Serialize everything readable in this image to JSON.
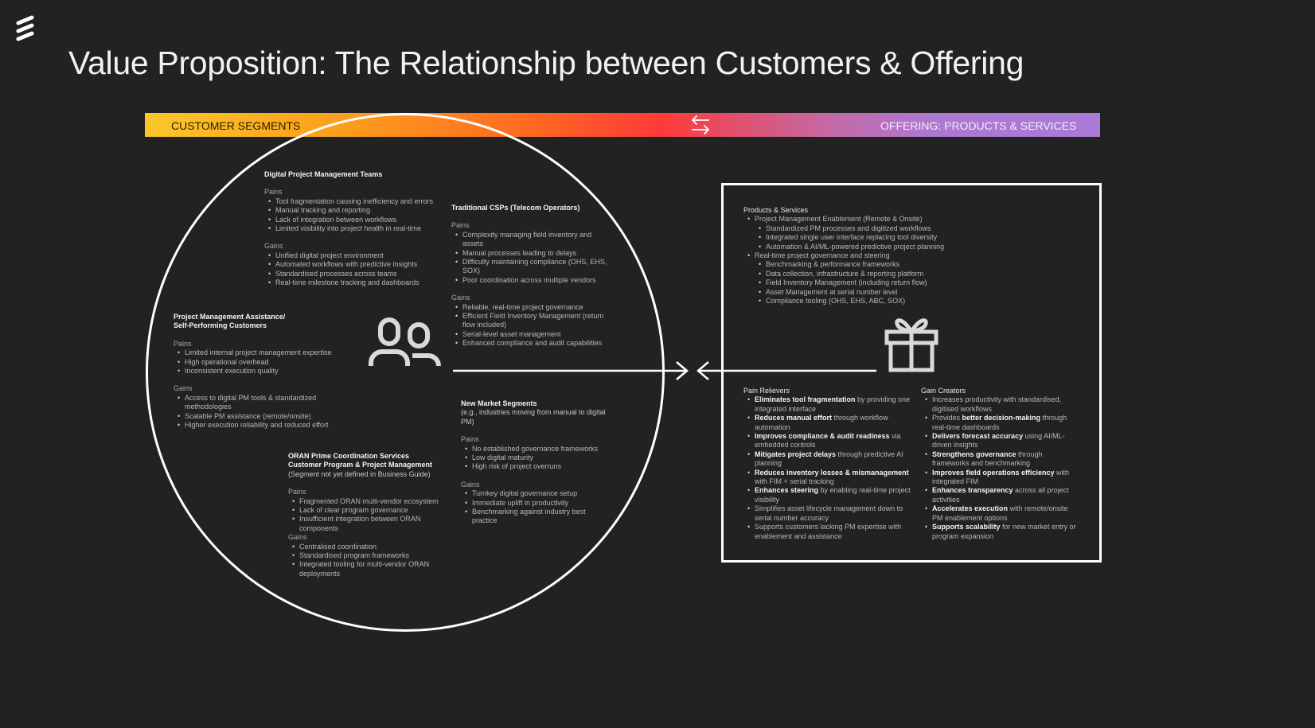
{
  "title": "Value Proposition: The Relationship between Customers & Offering",
  "banner": {
    "left_label": "CUSTOMER SEGMENTS",
    "right_label": "OFFERING: PRODUCTS & SERVICES",
    "icon": "swap-arrows-icon"
  },
  "colors": {
    "background": "#222222",
    "gradient": [
      "#fcc72a",
      "#ff3a38",
      "#a97ad6"
    ],
    "lines": "#ffffff"
  },
  "icons": {
    "logo": "ericsson-logo",
    "customers": "people-icon",
    "offering": "gift-icon"
  },
  "segments": [
    {
      "id": "dpm",
      "title": [
        "Digital Project Management Teams"
      ],
      "sections": [
        {
          "label": "Pains",
          "items": [
            "Tool fragmentation causing inefficiency and errors",
            "Manual tracking and reporting",
            "Lack of integration between workflows",
            "Limited visibility into project health in real-time"
          ]
        },
        {
          "label": "Gains",
          "items": [
            "Unified digital project environment",
            "Automated workflows with predictive insights",
            "Standardised processes across teams",
            "Real-time milestone tracking and dashboards"
          ]
        }
      ]
    },
    {
      "id": "csp",
      "title": [
        "Traditional CSPs (Telecom Operators)"
      ],
      "sections": [
        {
          "label": "Pains",
          "items": [
            "Complexity managing field inventory and assets",
            "Manual processes leading to delays",
            "Difficulty maintaining compliance (OHS, EHS, SOX)",
            "Poor coordination across multiple vendors"
          ]
        },
        {
          "label": "Gains",
          "items": [
            "Reliable, real-time project governance",
            "Efficient Field Inventory Management (return flow included)",
            "Serial-level asset management",
            "Enhanced compliance and audit capabilities"
          ]
        }
      ]
    },
    {
      "id": "pma",
      "title": [
        "Project Management Assistance/",
        "Self-Performing Customers"
      ],
      "sections": [
        {
          "label": "Pains",
          "items": [
            "Limited internal project management expertise",
            "High operational overhead",
            "Inconsistent execution quality"
          ]
        },
        {
          "label": "Gains",
          "items": [
            "Access to digital PM tools & standardized methodologies",
            "Scalable PM assistance (remote/onsite)",
            "Higher execution reliability and reduced effort"
          ]
        }
      ]
    },
    {
      "id": "nms",
      "title": [
        "New Market Segments"
      ],
      "subtitle": "(e.g., industries moving from manual to digital PM)",
      "sections": [
        {
          "label": "Pains",
          "items": [
            "No established governance frameworks",
            "Low digital maturity",
            "High risk of project overruns"
          ]
        },
        {
          "label": "Gains",
          "items": [
            "Turnkey digital governance setup",
            "Immediate uplift in productivity",
            "Benchmarking against industry best practice"
          ]
        }
      ]
    },
    {
      "id": "oran",
      "title": [
        "ORAN Prime Coordination Services",
        "Customer Program & Project Management"
      ],
      "subtitle": "(Segment not yet defined in Business Guide)",
      "sections": [
        {
          "label": "Pains",
          "items": [
            "Fragmented ORAN multi-vendor ecosystem",
            "Lack of clear program governance",
            "Insufficient integration between ORAN components"
          ]
        },
        {
          "label": "Gains",
          "tight": true,
          "items": [
            "Centralised coordination",
            "Standardised program frameworks",
            "Integrated tooling for multi-vendor ORAN deployments"
          ]
        }
      ]
    }
  ],
  "offering": {
    "products": {
      "label": "Products & Services",
      "items": [
        {
          "text": "Project Management Enablement (Remote & Onsite)",
          "children": [
            "Standardized PM processes and digitized workflows",
            "Integrated single user interface replacing tool diversity",
            "Automation & AI/ML-powered predictive project planning"
          ]
        },
        {
          "text": "Real-time project governance and steering",
          "children": [
            "Benchmarking & performance frameworks",
            "Data collection, infrastructure & reporting platform",
            "Field Inventory Management (including return flow)",
            "Asset Management at serial number level",
            "Compliance tooling (OHS, EHS, ABC, SOX)"
          ]
        }
      ]
    },
    "pain_relievers": {
      "label": "Pain Relievers",
      "items": [
        {
          "b": "Eliminates tool fragmentation",
          "t": " by providing one integrated interface"
        },
        {
          "b": "Reduces manual effort",
          "t": " through workflow automation"
        },
        {
          "b": "Improves compliance & audit readiness",
          "t": " via embedded controls"
        },
        {
          "b": "Mitigates project delays",
          "t": " through predictive AI planning"
        },
        {
          "b": "Reduces inventory losses & mismanagement",
          "t": " with FIM + serial tracking"
        },
        {
          "b": "Enhances steering",
          "t": " by enabling real-time project visibility"
        },
        {
          "b": "",
          "t": "Simplifies asset lifecycle management down to serial number accuracy"
        },
        {
          "b": "",
          "t": "Supports customers lacking PM expertise with enablement and assistance"
        }
      ]
    },
    "gain_creators": {
      "label": "Gain Creators",
      "items": [
        {
          "pre": "",
          "b": "",
          "t": "Increases productivity with standardised, digitised workflows"
        },
        {
          "pre": "Provides ",
          "b": "better decision-making",
          "t": " through real-time dashboards"
        },
        {
          "pre": "",
          "b": "Delivers forecast accuracy",
          "t": " using AI/ML-driven insights"
        },
        {
          "pre": "",
          "b": "Strengthens governance",
          "t": " through frameworks and benchmarking"
        },
        {
          "pre": "",
          "b": "Improves field operations efficiency",
          "t": " with integrated FIM"
        },
        {
          "pre": "",
          "b": "Enhances transparency",
          "t": " across all project activities"
        },
        {
          "pre": "",
          "b": "Accelerates execution",
          "t": " with remote/onsite PM enablement options"
        },
        {
          "pre": "",
          "b": "Supports scalability",
          "t": " for new market entry or program expansion"
        }
      ]
    }
  }
}
